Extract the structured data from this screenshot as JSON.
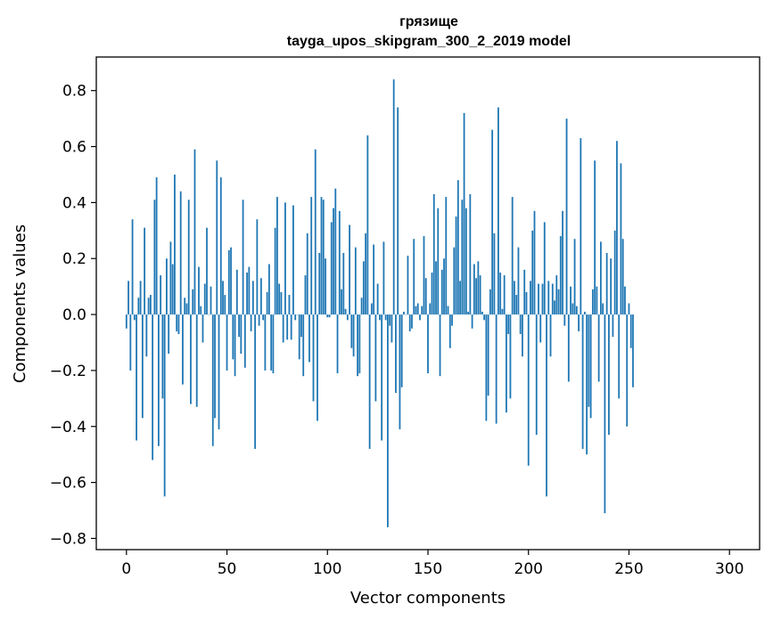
{
  "chart_data": {
    "type": "bar",
    "title": "грязище",
    "subtitle": "tayga_upos_skipgram_300_2_2019 model",
    "xlabel": "Vector components",
    "ylabel": "Components values",
    "xlim": [
      -15,
      315
    ],
    "ylim": [
      -0.84,
      0.92
    ],
    "grid": false,
    "x_ticks": [
      0,
      50,
      100,
      150,
      200,
      250,
      300
    ],
    "x_tick_labels": [
      "0",
      "50",
      "100",
      "150",
      "200",
      "250",
      "300"
    ],
    "y_ticks": [
      -0.8,
      -0.6,
      -0.4,
      -0.2,
      0.0,
      0.2,
      0.4,
      0.6,
      0.8
    ],
    "y_tick_labels": [
      "−0.8",
      "−0.6",
      "−0.4",
      "−0.2",
      "0.0",
      "0.2",
      "0.4",
      "0.6",
      "0.8"
    ],
    "bar_color": "#1f77b4",
    "series": [
      {
        "values": [
          -0.05,
          0.12,
          -0.2,
          0.34,
          -0.02,
          -0.45,
          0.06,
          0.12,
          -0.37,
          0.31,
          -0.15,
          0.06,
          0.07,
          -0.52,
          0.41,
          0.49,
          -0.47,
          0.14,
          -0.3,
          -0.65,
          0.2,
          -0.14,
          0.26,
          0.18,
          0.5,
          -0.06,
          -0.07,
          0.44,
          -0.25,
          0.06,
          0.04,
          0.41,
          -0.32,
          0.09,
          0.59,
          -0.33,
          0.17,
          0.03,
          -0.1,
          0.11,
          0.31,
          0.0,
          0.1,
          -0.47,
          -0.37,
          0.55,
          -0.41,
          0.49,
          0.12,
          0.07,
          -0.2,
          0.23,
          0.24,
          -0.16,
          -0.22,
          0.16,
          -0.08,
          -0.14,
          0.41,
          -0.19,
          0.15,
          0.17,
          -0.06,
          0.12,
          -0.48,
          0.34,
          -0.04,
          0.13,
          -0.02,
          -0.2,
          0.08,
          0.18,
          -0.2,
          -0.21,
          0.31,
          0.42,
          0.11,
          0.08,
          -0.1,
          0.4,
          -0.09,
          0.07,
          -0.09,
          0.39,
          -0.02,
          0.0,
          -0.16,
          -0.08,
          -0.22,
          0.14,
          0.29,
          -0.17,
          0.42,
          -0.31,
          0.59,
          -0.38,
          0.22,
          0.42,
          0.41,
          0.2,
          -0.01,
          -0.01,
          0.33,
          0.38,
          0.45,
          -0.21,
          0.37,
          0.09,
          0.22,
          0.02,
          -0.02,
          0.32,
          -0.12,
          -0.15,
          0.24,
          -0.22,
          -0.21,
          0.06,
          0.19,
          0.29,
          0.64,
          -0.48,
          0.04,
          0.25,
          -0.31,
          0.11,
          -0.02,
          -0.45,
          0.26,
          -0.02,
          -0.76,
          -0.04,
          -0.1,
          0.84,
          -0.28,
          0.74,
          -0.41,
          -0.26,
          0.01,
          0.0,
          0.21,
          -0.06,
          -0.05,
          0.27,
          0.03,
          0.04,
          -0.02,
          0.03,
          0.28,
          0.13,
          -0.21,
          0.04,
          0.15,
          0.43,
          0.19,
          0.38,
          -0.22,
          0.16,
          0.2,
          0.42,
          0.03,
          -0.12,
          -0.04,
          0.24,
          0.35,
          0.48,
          0.12,
          0.41,
          0.72,
          0.38,
          0.01,
          0.43,
          -0.05,
          0.18,
          0.13,
          0.19,
          0.14,
          0.01,
          -0.02,
          -0.38,
          -0.29,
          0.09,
          0.66,
          0.29,
          -0.39,
          0.74,
          0.15,
          0.02,
          0.14,
          -0.35,
          -0.07,
          -0.3,
          0.42,
          0.12,
          0.07,
          0.24,
          -0.07,
          -0.15,
          0.16,
          0.08,
          -0.54,
          0.12,
          0.3,
          0.37,
          -0.43,
          0.11,
          -0.1,
          0.11,
          0.33,
          -0.65,
          0.12,
          -0.15,
          0.11,
          0.05,
          0.14,
          0.09,
          0.28,
          0.37,
          -0.04,
          0.7,
          -0.24,
          0.1,
          0.04,
          0.27,
          0.03,
          -0.06,
          0.63,
          -0.48,
          0.01,
          -0.5,
          -0.33,
          -0.37,
          0.09,
          0.55,
          0.1,
          -0.24,
          0.26,
          0.04,
          -0.71,
          0.22,
          -0.43,
          0.2,
          -0.08,
          0.3,
          0.62,
          -0.3,
          0.54,
          0.27,
          0.1,
          -0.4,
          0.04,
          -0.12,
          -0.26
        ]
      }
    ]
  }
}
